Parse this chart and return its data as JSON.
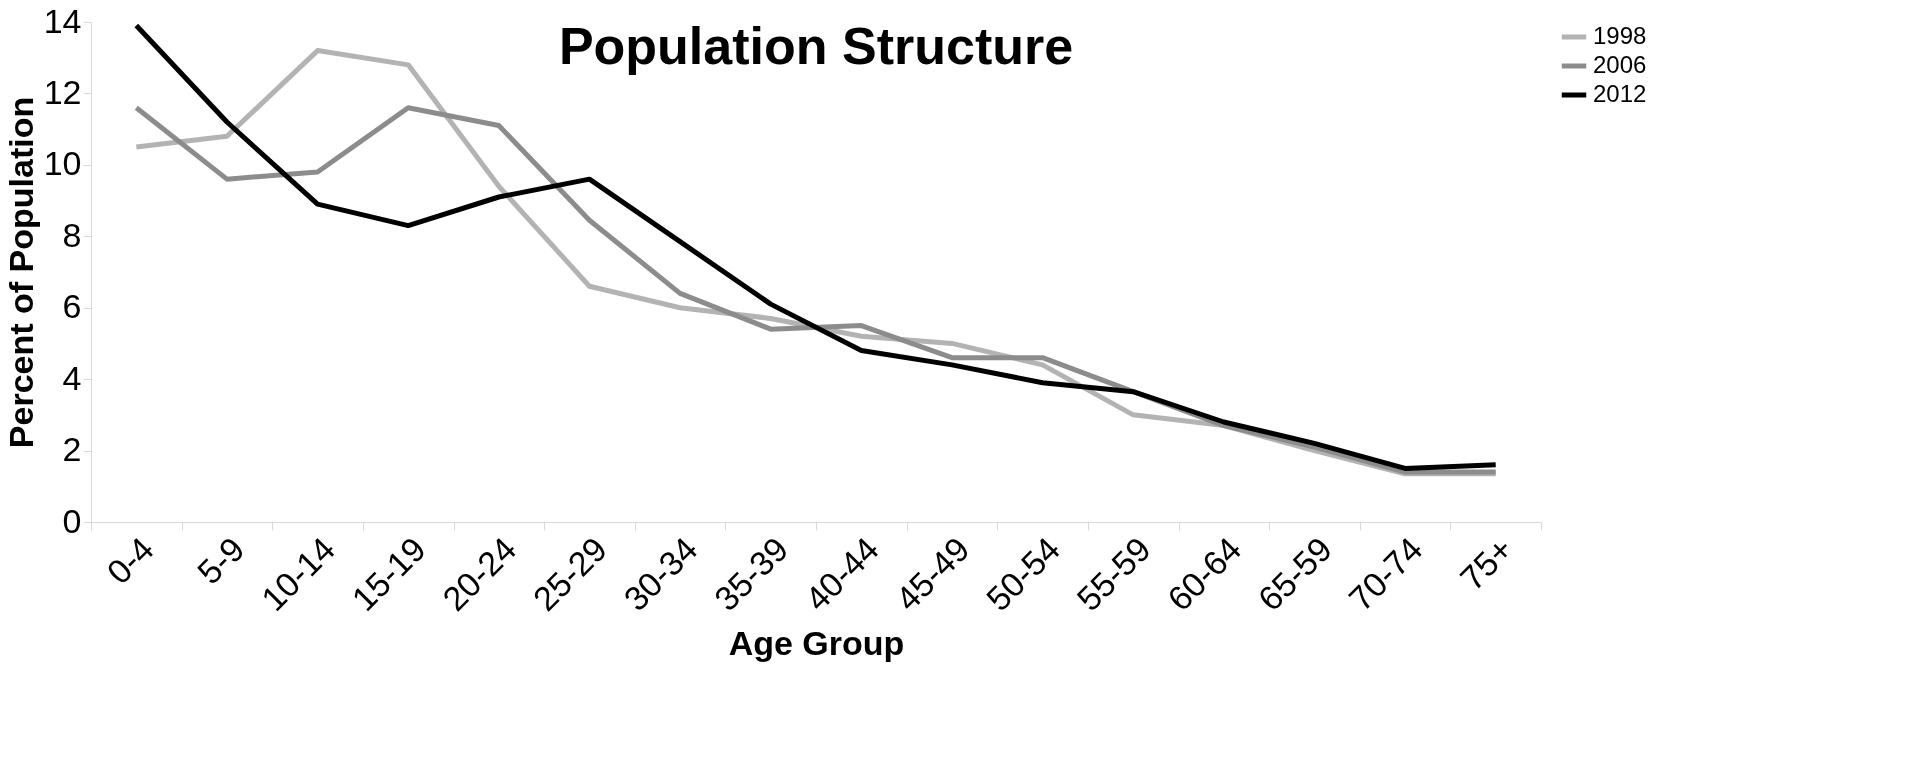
{
  "chart_data": {
    "type": "line",
    "title": "Population Structure",
    "xlabel": "Age Group",
    "ylabel": "Percent of Population",
    "categories": [
      "0-4",
      "5-9",
      "10-14",
      "15-19",
      "20-24",
      "25-29",
      "30-34",
      "35-39",
      "40-44",
      "45-49",
      "50-54",
      "55-59",
      "60-64",
      "65-59",
      "70-74",
      "75+"
    ],
    "series": [
      {
        "name": "1998",
        "color": "#b3b3b3",
        "values": [
          10.5,
          10.8,
          13.2,
          12.8,
          9.4,
          6.6,
          6.0,
          5.7,
          5.2,
          5.0,
          4.4,
          3.0,
          2.7,
          2.0,
          1.35,
          1.35
        ]
      },
      {
        "name": "2006",
        "color": "#8c8c8c",
        "values": [
          11.6,
          9.6,
          9.8,
          11.6,
          11.1,
          8.45,
          6.4,
          5.4,
          5.5,
          4.6,
          4.6,
          3.65,
          2.7,
          2.1,
          1.4,
          1.4
        ]
      },
      {
        "name": "2012",
        "color": "#000000",
        "values": [
          13.9,
          11.2,
          8.9,
          8.3,
          9.1,
          9.6,
          7.85,
          6.1,
          4.8,
          4.4,
          3.9,
          3.65,
          2.8,
          2.2,
          1.5,
          1.6
        ]
      }
    ],
    "ylim": [
      0,
      14
    ],
    "yticks": [
      0,
      2,
      4,
      6,
      8,
      10,
      12,
      14
    ],
    "grid": false,
    "legend": "right",
    "marker": "none",
    "line_style": "solid"
  }
}
